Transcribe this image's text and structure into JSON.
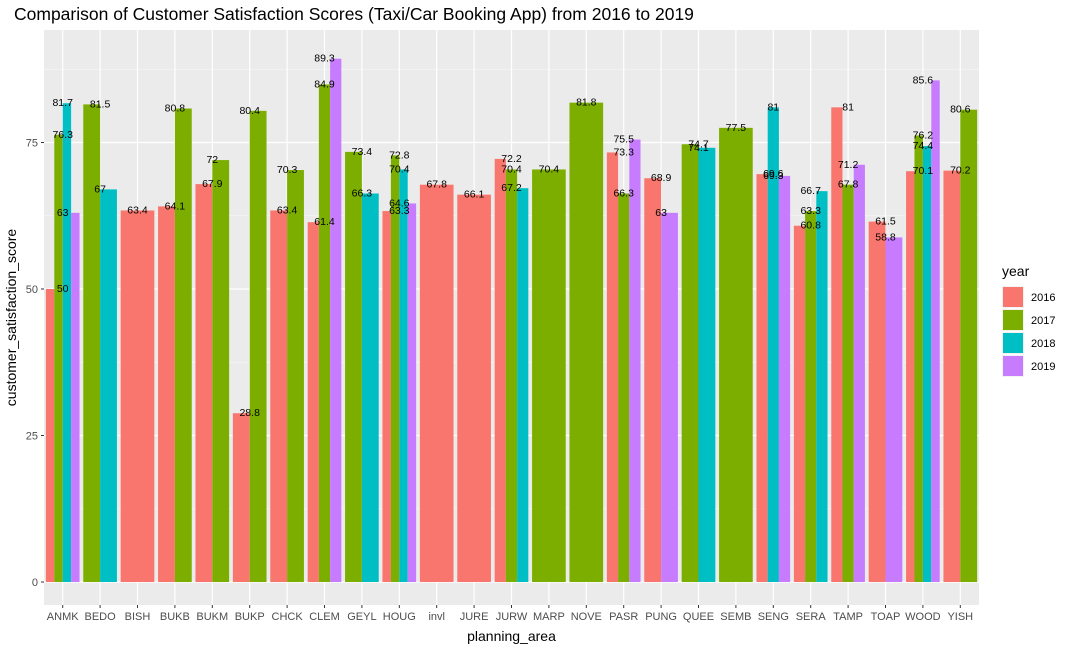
{
  "chart_data": {
    "type": "bar",
    "title": "Comparison of Customer Satisfaction Scores (Taxi/Car Booking App) from 2016 to 2019",
    "xlabel": "planning_area",
    "ylabel": "customer_satisfaction_score",
    "ylim": [
      0,
      90
    ],
    "yticks": [
      0,
      25,
      50,
      75
    ],
    "grid": true,
    "legend": {
      "title": "year",
      "placement": "right"
    },
    "categories": [
      "ANMK",
      "BEDO",
      "BISH",
      "BUKB",
      "BUKM",
      "BUKP",
      "CHCK",
      "CLEM",
      "GEYL",
      "HOUG",
      "invl",
      "JURE",
      "JURW",
      "MARP",
      "NOVE",
      "PASR",
      "PUNG",
      "QUEE",
      "SEMB",
      "SENG",
      "SERA",
      "TAMP",
      "TOAP",
      "WOOD",
      "YISH"
    ],
    "series": [
      {
        "name": "2016",
        "color": "#F8766D",
        "values": [
          50,
          null,
          63.4,
          64.1,
          67.9,
          28.8,
          63.4,
          61.4,
          null,
          63.3,
          67.8,
          66.1,
          72.2,
          null,
          null,
          73.3,
          68.9,
          null,
          null,
          69.6,
          60.8,
          81,
          61.5,
          70.1,
          70.2
        ]
      },
      {
        "name": "2017",
        "color": "#7CAE00",
        "values": [
          76.3,
          81.5,
          null,
          80.8,
          72,
          80.4,
          70.3,
          84.9,
          73.4,
          72.8,
          null,
          null,
          70.4,
          70.4,
          81.8,
          66.3,
          null,
          74.7,
          77.5,
          null,
          63.3,
          67.8,
          null,
          76.2,
          80.6
        ]
      },
      {
        "name": "2018",
        "color": "#00BFC4",
        "values": [
          81.7,
          67,
          null,
          null,
          null,
          null,
          null,
          null,
          66.3,
          70.4,
          null,
          null,
          67.2,
          null,
          null,
          null,
          null,
          74.1,
          null,
          81,
          66.7,
          null,
          null,
          74.4,
          null
        ]
      },
      {
        "name": "2019",
        "color": "#C77CFF",
        "values": [
          63,
          null,
          null,
          null,
          null,
          null,
          null,
          89.3,
          null,
          64.6,
          null,
          null,
          null,
          null,
          null,
          75.5,
          63,
          null,
          null,
          69.3,
          null,
          71.2,
          58.8,
          85.6,
          null
        ]
      }
    ]
  }
}
